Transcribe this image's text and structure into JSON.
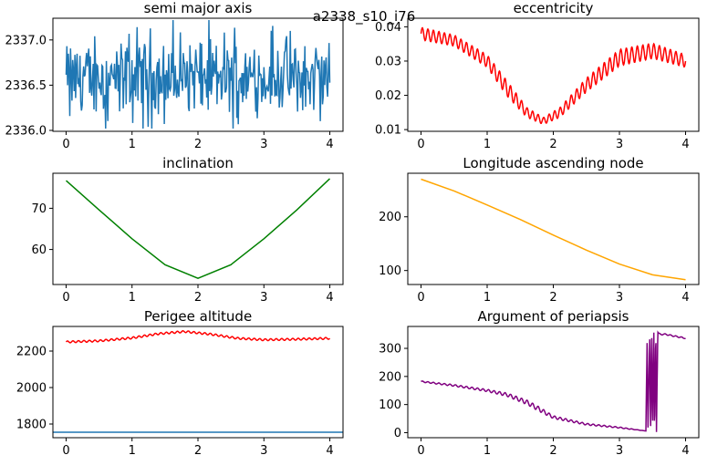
{
  "figure": {
    "suptitle": "a2338_s10_i76"
  },
  "chart_data": [
    {
      "id": "sma",
      "type": "line",
      "title": "semi major axis",
      "xlim": [
        -0.2,
        4.2
      ],
      "ylim": [
        2335.99,
        2337.24
      ],
      "xticks": [
        0,
        1,
        2,
        3,
        4
      ],
      "yticks": [
        2336.0,
        2336.5,
        2337.0
      ],
      "ytick_labels": [
        "2336.0",
        "2336.5",
        "2337.0"
      ],
      "series": [
        {
          "color": "#1f77b4",
          "noisy": true,
          "x": [
            0,
            4
          ],
          "y": [
            2336.58,
            2336.58
          ]
        }
      ]
    },
    {
      "id": "ecc",
      "type": "line",
      "title": "eccentricity",
      "xlim": [
        -0.2,
        4.2
      ],
      "ylim": [
        0.0095,
        0.0425
      ],
      "xticks": [
        0,
        1,
        2,
        3,
        4
      ],
      "yticks": [
        0.01,
        0.02,
        0.03,
        0.04
      ],
      "ytick_labels": [
        "0.01",
        "0.02",
        "0.03",
        "0.04"
      ],
      "series": [
        {
          "color": "#ff0000",
          "x": [
            0,
            0.5,
            1.0,
            1.3,
            1.6,
            1.85,
            2.1,
            2.5,
            3.0,
            3.5,
            4.0
          ],
          "y": [
            0.038,
            0.036,
            0.03,
            0.022,
            0.015,
            0.0125,
            0.015,
            0.023,
            0.031,
            0.033,
            0.03
          ],
          "osc_amp": [
            0.0018,
            0.0016,
            0.0018,
            0.0022,
            0.0014,
            0.001,
            0.0014,
            0.002,
            0.0024,
            0.0022,
            0.0018
          ]
        }
      ]
    },
    {
      "id": "inc",
      "type": "line",
      "title": "inclination",
      "xlim": [
        -0.2,
        4.2
      ],
      "ylim": [
        51.5,
        78.5
      ],
      "xticks": [
        0,
        1,
        2,
        3,
        4
      ],
      "yticks": [
        60,
        70
      ],
      "ytick_labels": [
        "60",
        "70"
      ],
      "series": [
        {
          "color": "#008000",
          "x": [
            0,
            0.5,
            1.0,
            1.5,
            2.0,
            2.5,
            3.0,
            3.5,
            4.0
          ],
          "y": [
            76.7,
            69.6,
            62.6,
            56.3,
            53.0,
            56.3,
            62.6,
            69.6,
            77.2
          ]
        }
      ]
    },
    {
      "id": "raan",
      "type": "line",
      "title": "Longitude ascending node",
      "xlim": [
        -0.2,
        4.2
      ],
      "ylim": [
        74,
        281
      ],
      "xticks": [
        0,
        1,
        2,
        3,
        4
      ],
      "yticks": [
        100,
        200
      ],
      "ytick_labels": [
        "100",
        "200"
      ],
      "series": [
        {
          "color": "#ffa500",
          "x": [
            0,
            0.5,
            1.0,
            1.5,
            2.0,
            2.5,
            3.0,
            3.5,
            4.0
          ],
          "y": [
            270,
            248,
            222,
            195,
            166,
            138,
            112,
            92,
            83
          ]
        }
      ]
    },
    {
      "id": "peri",
      "type": "line",
      "title": "Perigee altitude",
      "xlim": [
        -0.2,
        4.2
      ],
      "ylim": [
        1725,
        2335
      ],
      "xticks": [
        0,
        1,
        2,
        3,
        4
      ],
      "yticks": [
        1800,
        2000,
        2200
      ],
      "ytick_labels": [
        "1800",
        "2000",
        "2200"
      ],
      "series": [
        {
          "color": "#ff0000",
          "x": [
            0,
            0.5,
            1.0,
            1.4,
            1.8,
            2.2,
            2.6,
            3.0,
            3.5,
            4.0
          ],
          "y": [
            2250,
            2256,
            2272,
            2295,
            2307,
            2292,
            2270,
            2262,
            2265,
            2270
          ],
          "osc_amp": [
            5,
            5,
            5,
            5,
            5,
            5,
            5,
            5,
            5,
            5
          ]
        },
        {
          "color": "#1f77b4",
          "x": [
            -0.2,
            4.2
          ],
          "y": [
            1755,
            1755
          ]
        }
      ]
    },
    {
      "id": "argp",
      "type": "line",
      "title": "Argument of periapsis",
      "xlim": [
        -0.2,
        4.2
      ],
      "ylim": [
        -18,
        378
      ],
      "xticks": [
        0,
        1,
        2,
        3,
        4
      ],
      "yticks": [
        0,
        100,
        200,
        300
      ],
      "ytick_labels": [
        "0",
        "100",
        "200",
        "300"
      ],
      "series": [
        {
          "color": "#800080",
          "x": [
            0,
            0.5,
            1.0,
            1.3,
            1.6,
            1.8,
            2.0,
            2.5,
            3.0,
            3.4,
            3.42,
            3.43,
            3.46,
            3.47,
            3.49,
            3.5,
            3.52,
            3.53,
            3.55,
            3.56,
            3.58,
            3.59,
            3.62,
            3.7,
            3.8,
            4.0
          ],
          "y": [
            182,
            168,
            150,
            135,
            108,
            82,
            55,
            30,
            18,
            6,
            358,
            5,
            358,
            4,
            356,
            3,
            356,
            3,
            358,
            2,
            358,
            355,
            350,
            350,
            345,
            336
          ],
          "osc_amp": [
            2,
            3,
            4,
            6,
            8,
            8,
            5,
            3,
            2,
            0,
            0,
            0,
            0,
            0,
            0,
            0,
            0,
            0,
            0,
            0,
            0,
            0,
            2,
            2,
            2,
            2
          ]
        }
      ]
    }
  ]
}
